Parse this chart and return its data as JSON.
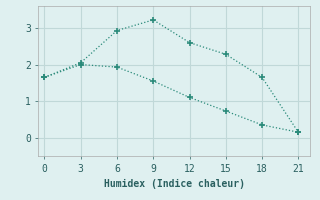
{
  "xlabel": "Humidex (Indice chaleur)",
  "background_color": "#dff0f0",
  "grid_color": "#c0d8d8",
  "line_color": "#2a8a7a",
  "line1_x": [
    0,
    3,
    6,
    9,
    12,
    15,
    18,
    21
  ],
  "line1_y": [
    1.65,
    2.05,
    2.93,
    3.22,
    2.6,
    2.28,
    1.65,
    0.15
  ],
  "line2_x": [
    0,
    3,
    6,
    9,
    12,
    15,
    18,
    21
  ],
  "line2_y": [
    1.65,
    2.0,
    1.93,
    1.55,
    1.1,
    0.73,
    0.35,
    0.15
  ],
  "xlim": [
    -0.5,
    22
  ],
  "ylim": [
    -0.5,
    3.6
  ],
  "xticks": [
    0,
    3,
    6,
    9,
    12,
    15,
    18,
    21
  ],
  "yticks": [
    0,
    1,
    2,
    3
  ]
}
